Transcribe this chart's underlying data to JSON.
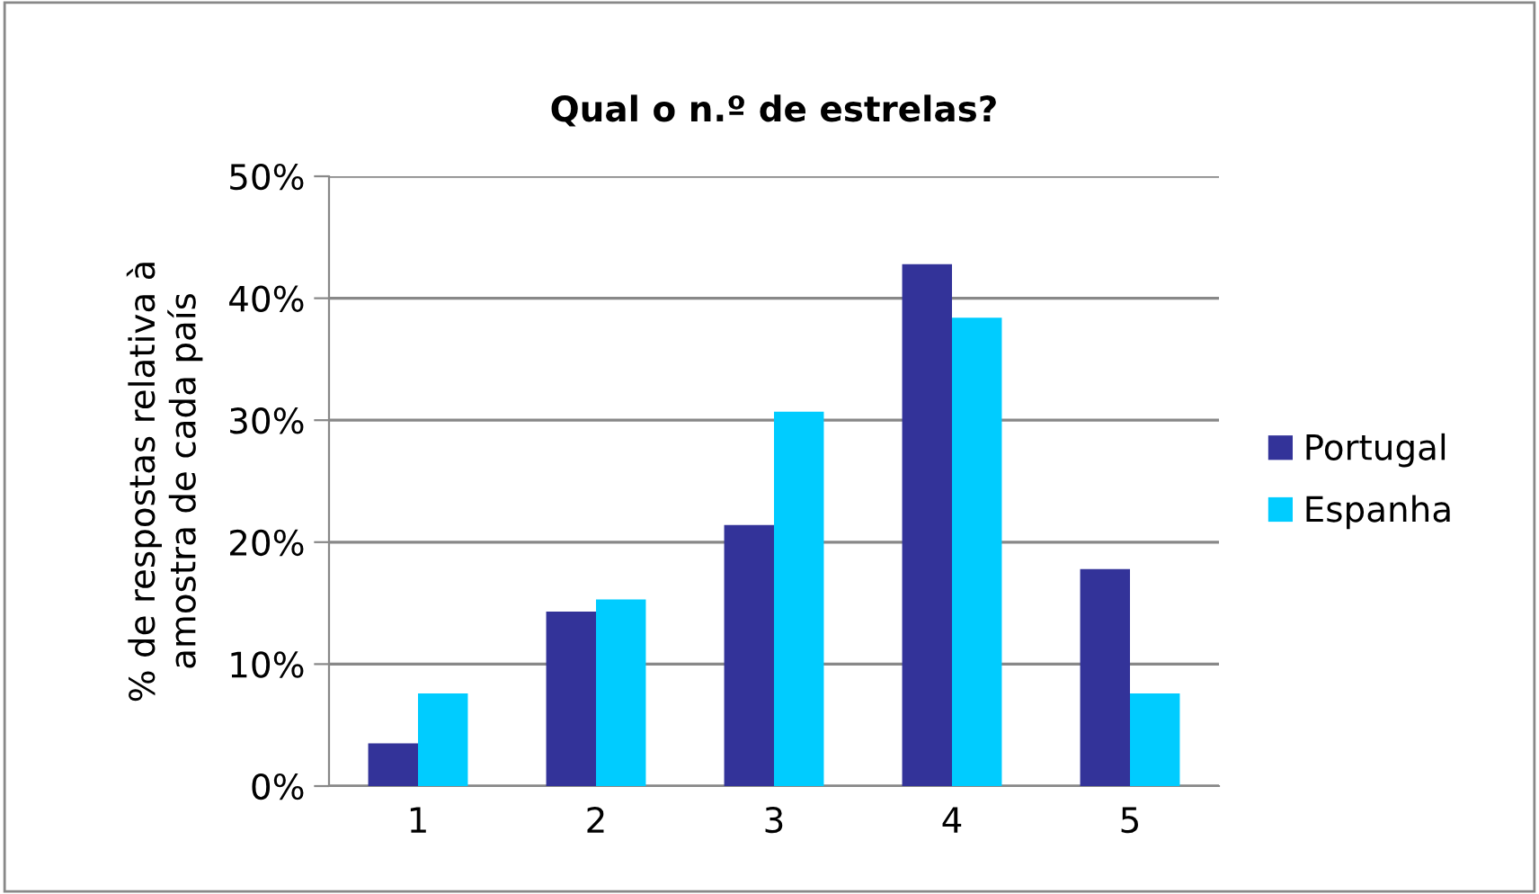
{
  "chart_data": {
    "type": "bar",
    "title": "Qual o n.º de estrelas?",
    "ylabel": "% de respostas relativa à\namostra de cada país",
    "categories": [
      "1",
      "2",
      "3",
      "4",
      "5"
    ],
    "series": [
      {
        "name": "Portugal",
        "color": "#333399",
        "values": [
          3.5,
          14.3,
          21.4,
          42.8,
          17.8
        ]
      },
      {
        "name": "Espanha",
        "color": "#00ccff",
        "values": [
          7.6,
          15.3,
          30.7,
          38.4,
          7.6
        ]
      }
    ],
    "ylim": [
      0,
      50
    ],
    "yticks": [
      {
        "value": 0,
        "label": "0%"
      },
      {
        "value": 10,
        "label": "10%"
      },
      {
        "value": 20,
        "label": "20%"
      },
      {
        "value": 30,
        "label": "30%"
      },
      {
        "value": 40,
        "label": "40%"
      },
      {
        "value": 50,
        "label": "50%"
      }
    ],
    "grid": "y",
    "legend": "right"
  }
}
